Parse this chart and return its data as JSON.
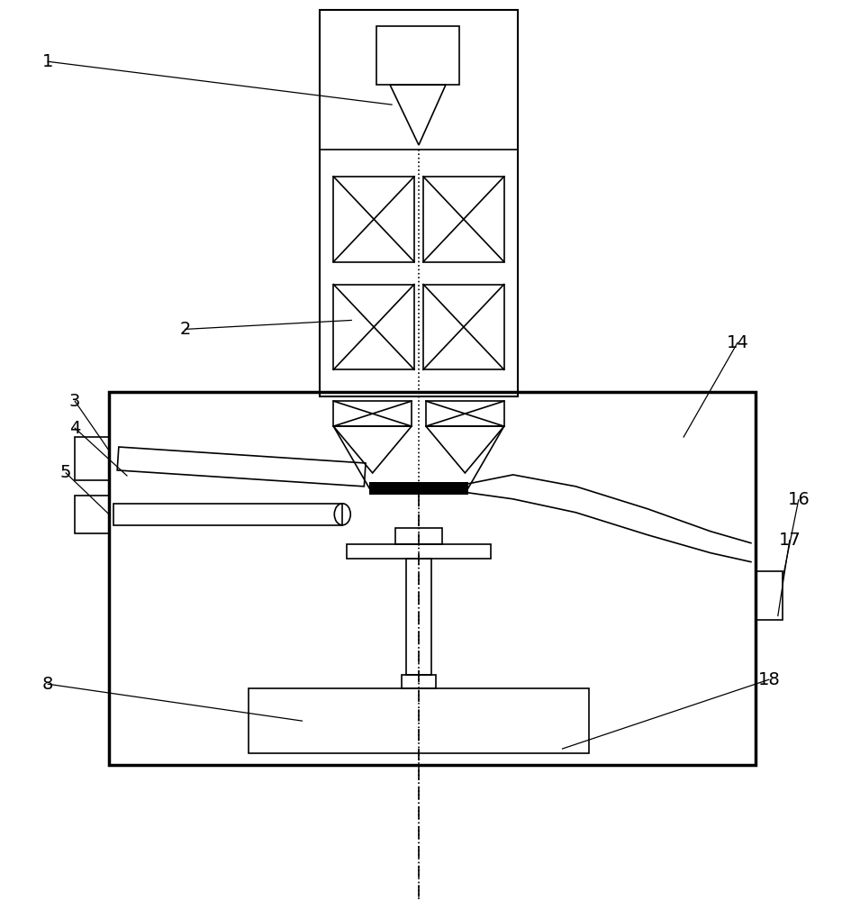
{
  "bg_color": "#ffffff",
  "line_color": "#000000",
  "lw_thick": 2.5,
  "lw_med": 1.5,
  "lw_thin": 1.2,
  "label_fontsize": 14
}
